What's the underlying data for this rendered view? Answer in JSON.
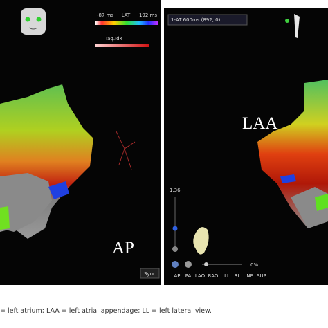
{
  "left_panel": {
    "lat_min": "-87 ms",
    "lat_label": "LAT",
    "lat_max": "192 ms",
    "tag_label": "Taq.Idx",
    "sync_button": "Sync",
    "view_label": "AP"
  },
  "right_panel": {
    "map_name": "1-AT 600ms (892, 0)",
    "structure_label": "LAA",
    "zoom_value": "1.36",
    "transparency_value": "0%",
    "view_buttons": [
      "AP",
      "PA",
      "LAO",
      "RAO",
      "LL",
      "RL",
      "INF",
      "SUP"
    ]
  },
  "caption": "= left atrium; LAA = left atrial appendage; LL = left lateral view."
}
